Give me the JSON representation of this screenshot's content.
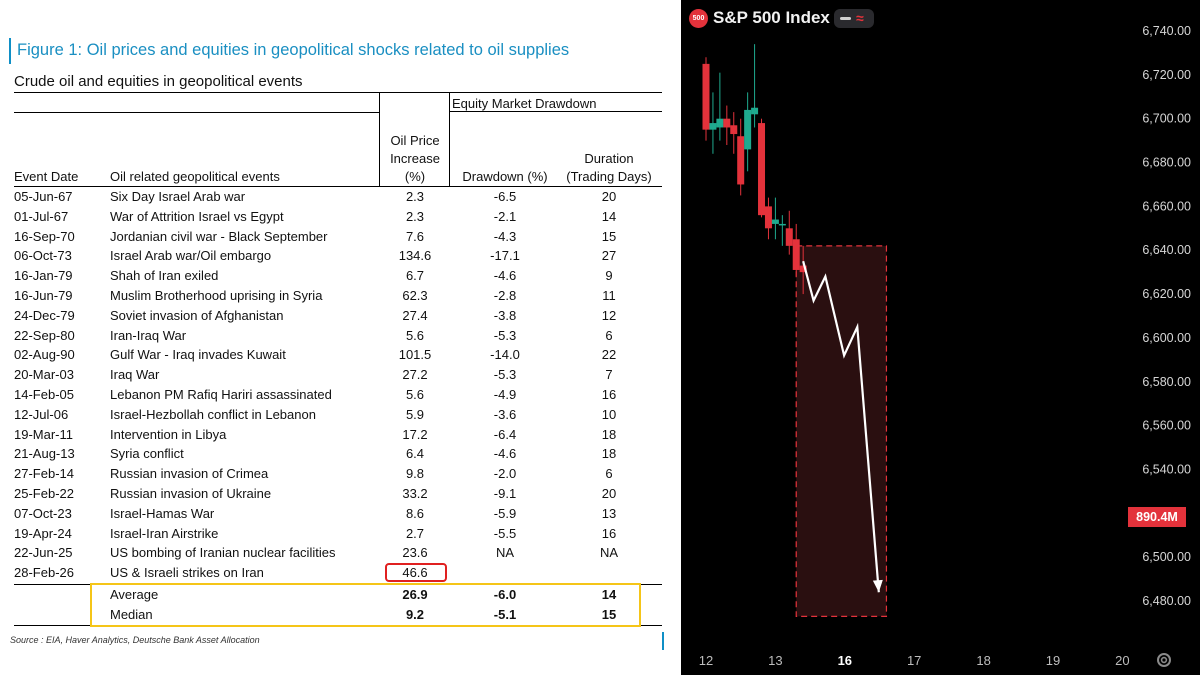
{
  "figure_title": "Figure 1: Oil prices and equities in geopolitical shocks related to oil supplies",
  "subtitle": "Crude oil and equities in geopolitical events",
  "headers": {
    "group": "Equity Market Drawdown",
    "date": "Event Date",
    "event": "Oil related geopolitical events",
    "oil_l1": "Oil Price",
    "oil_l2": "Increase",
    "oil_l3": "(%)",
    "drawdown": "Drawdown (%)",
    "dur_l1": "Duration",
    "dur_l2": "(Trading Days)"
  },
  "chart_data": [
    {
      "type": "table",
      "title": "Crude oil and equities in geopolitical events",
      "columns": [
        "Event Date",
        "Oil related geopolitical events",
        "Oil Price Increase (%)",
        "Drawdown (%)",
        "Duration (Trading Days)"
      ],
      "rows": [
        {
          "date": "05-Jun-67",
          "event": "Six Day Israel Arab war",
          "oil": "2.3",
          "drawdown": "-6.5",
          "duration": "20"
        },
        {
          "date": "01-Jul-67",
          "event": "War of Attrition Israel vs Egypt",
          "oil": "2.3",
          "drawdown": "-2.1",
          "duration": "14"
        },
        {
          "date": "16-Sep-70",
          "event": "Jordanian civil war - Black September",
          "oil": "7.6",
          "drawdown": "-4.3",
          "duration": "15"
        },
        {
          "date": "06-Oct-73",
          "event": "Israel Arab war/Oil embargo",
          "oil": "134.6",
          "drawdown": "-17.1",
          "duration": "27"
        },
        {
          "date": "16-Jan-79",
          "event": "Shah of Iran exiled",
          "oil": "6.7",
          "drawdown": "-4.6",
          "duration": "9"
        },
        {
          "date": "16-Jun-79",
          "event": "Muslim Brotherhood uprising in Syria",
          "oil": "62.3",
          "drawdown": "-2.8",
          "duration": "11"
        },
        {
          "date": "24-Dec-79",
          "event": "Soviet invasion of Afghanistan",
          "oil": "27.4",
          "drawdown": "-3.8",
          "duration": "12"
        },
        {
          "date": "22-Sep-80",
          "event": "Iran-Iraq War",
          "oil": "5.6",
          "drawdown": "-5.3",
          "duration": "6"
        },
        {
          "date": "02-Aug-90",
          "event": "Gulf War - Iraq invades Kuwait",
          "oil": "101.5",
          "drawdown": "-14.0",
          "duration": "22"
        },
        {
          "date": "20-Mar-03",
          "event": "Iraq War",
          "oil": "27.2",
          "drawdown": "-5.3",
          "duration": "7"
        },
        {
          "date": "14-Feb-05",
          "event": "Lebanon PM Rafiq Hariri assassinated",
          "oil": "5.6",
          "drawdown": "-4.9",
          "duration": "16"
        },
        {
          "date": "12-Jul-06",
          "event": "Israel-Hezbollah conflict in Lebanon",
          "oil": "5.9",
          "drawdown": "-3.6",
          "duration": "10"
        },
        {
          "date": "19-Mar-11",
          "event": "Intervention in Libya",
          "oil": "17.2",
          "drawdown": "-6.4",
          "duration": "18"
        },
        {
          "date": "21-Aug-13",
          "event": "Syria conflict",
          "oil": "6.4",
          "drawdown": "-4.6",
          "duration": "18"
        },
        {
          "date": "27-Feb-14",
          "event": "Russian invasion of Crimea",
          "oil": "9.8",
          "drawdown": "-2.0",
          "duration": "6"
        },
        {
          "date": "25-Feb-22",
          "event": "Russian invasion of Ukraine",
          "oil": "33.2",
          "drawdown": "-9.1",
          "duration": "20"
        },
        {
          "date": "07-Oct-23",
          "event": "Israel-Hamas War",
          "oil": "8.6",
          "drawdown": "-5.9",
          "duration": "13"
        },
        {
          "date": "19-Apr-24",
          "event": "Israel-Iran Airstrike",
          "oil": "2.7",
          "drawdown": "-5.5",
          "duration": "16"
        },
        {
          "date": "22-Jun-25",
          "event": "US bombing of Iranian nuclear facilities",
          "oil": "23.6",
          "drawdown": "NA",
          "duration": "NA"
        },
        {
          "date": "28-Feb-26",
          "event": "US & Israeli strikes on Iran",
          "oil": "46.6",
          "drawdown": "",
          "duration": ""
        }
      ],
      "summary": [
        {
          "label": "Average",
          "oil": "26.9",
          "drawdown": "-6.0",
          "duration": "14"
        },
        {
          "label": "Median",
          "oil": "9.2",
          "drawdown": "-5.1",
          "duration": "15"
        }
      ]
    },
    {
      "type": "candlestick",
      "title": "S&P 500 Index",
      "x_ticks": [
        "12",
        "13",
        "16",
        "17",
        "18",
        "19",
        "20"
      ],
      "x_tick_pos": [
        0,
        1,
        2,
        3,
        4,
        5,
        6
      ],
      "y_ticks": [
        "6,740.00",
        "6,720.00",
        "6,700.00",
        "6,680.00",
        "6,660.00",
        "6,640.00",
        "6,620.00",
        "6,600.00",
        "6,580.00",
        "6,560.00",
        "6,540.00",
        "6,500.00",
        "6,480.00"
      ],
      "y_tick_values": [
        6740,
        6720,
        6700,
        6680,
        6660,
        6640,
        6620,
        6600,
        6580,
        6560,
        6540,
        6500,
        6480
      ],
      "ylim": [
        6468,
        6749
      ],
      "volume_label": "890.4M",
      "volume_label_value": 6518,
      "candles": [
        {
          "t": 0.0,
          "o": 6725,
          "h": 6728,
          "l": 6690,
          "c": 6695
        },
        {
          "t": 0.1,
          "o": 6695,
          "h": 6712,
          "l": 6684,
          "c": 6698
        },
        {
          "t": 0.2,
          "o": 6696,
          "h": 6721,
          "l": 6690,
          "c": 6700
        },
        {
          "t": 0.3,
          "o": 6700,
          "h": 6706,
          "l": 6688,
          "c": 6696
        },
        {
          "t": 0.4,
          "o": 6697,
          "h": 6703,
          "l": 6684,
          "c": 6693
        },
        {
          "t": 0.5,
          "o": 6692,
          "h": 6700,
          "l": 6665,
          "c": 6670
        },
        {
          "t": 0.6,
          "o": 6686,
          "h": 6712,
          "l": 6676,
          "c": 6704
        },
        {
          "t": 0.7,
          "o": 6702,
          "h": 6734,
          "l": 6696,
          "c": 6705
        },
        {
          "t": 0.8,
          "o": 6698,
          "h": 6700,
          "l": 6655,
          "c": 6656
        },
        {
          "t": 0.9,
          "o": 6660,
          "h": 6664,
          "l": 6645,
          "c": 6650
        },
        {
          "t": 1.0,
          "o": 6652,
          "h": 6664,
          "l": 6645,
          "c": 6654
        },
        {
          "t": 1.1,
          "o": 6652,
          "h": 6656,
          "l": 6642,
          "c": 6652
        },
        {
          "t": 1.2,
          "o": 6650,
          "h": 6658,
          "l": 6638,
          "c": 6642
        },
        {
          "t": 1.3,
          "o": 6645,
          "h": 6652,
          "l": 6628,
          "c": 6631
        },
        {
          "t": 1.4,
          "o": 6633,
          "h": 6642,
          "l": 6620,
          "c": 6630
        }
      ],
      "projection": {
        "x": [
          1.4,
          1.55,
          1.72,
          1.99,
          2.18,
          2.49
        ],
        "y": [
          6635,
          6617,
          6628,
          6592,
          6605,
          6484
        ]
      },
      "zone": {
        "x0": 1.3,
        "x1": 2.6,
        "y0": 6642,
        "y1": 6473
      },
      "legend_tooltip": "",
      "watermark": ""
    }
  ],
  "sp_title": "S&P 500 Index",
  "sp_logo": "500",
  "source": "Source : EIA, Haver Analytics, Deutsche Bank Asset Allocation",
  "colors": {
    "accent_blue": "#1a8fc2",
    "bear": "#e3323b",
    "bull": "#1faa8f",
    "highlight_red": "#e02020",
    "highlight_yellow": "#f5c518"
  }
}
